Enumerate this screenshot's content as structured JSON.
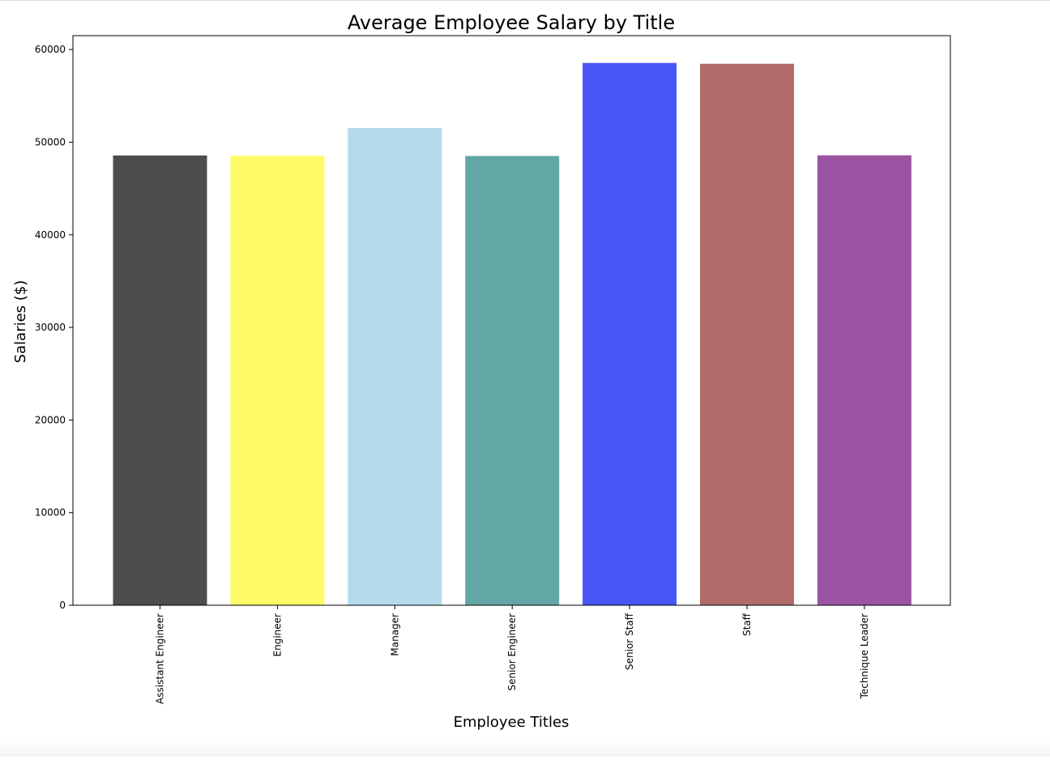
{
  "chart_data": {
    "type": "bar",
    "title": "Average Employee Salary by Title",
    "xlabel": "Employee Titles",
    "ylabel": "Salaries ($)",
    "categories": [
      "Assistant Engineer",
      "Engineer",
      "Manager",
      "Senior Engineer",
      "Senior Staff",
      "Staff",
      "Technique Leader"
    ],
    "values": [
      48560,
      48535,
      51531,
      48507,
      58550,
      58465,
      48583
    ],
    "colors": [
      "#4d4d4d",
      "#fffb68",
      "#b3dbec",
      "#63a6a6",
      "#4755f4",
      "#b26c6a",
      "#9a54a2"
    ],
    "ylim": [
      0,
      61500
    ],
    "yticks": [
      0,
      10000,
      20000,
      30000,
      40000,
      50000,
      60000
    ],
    "grid": false
  }
}
